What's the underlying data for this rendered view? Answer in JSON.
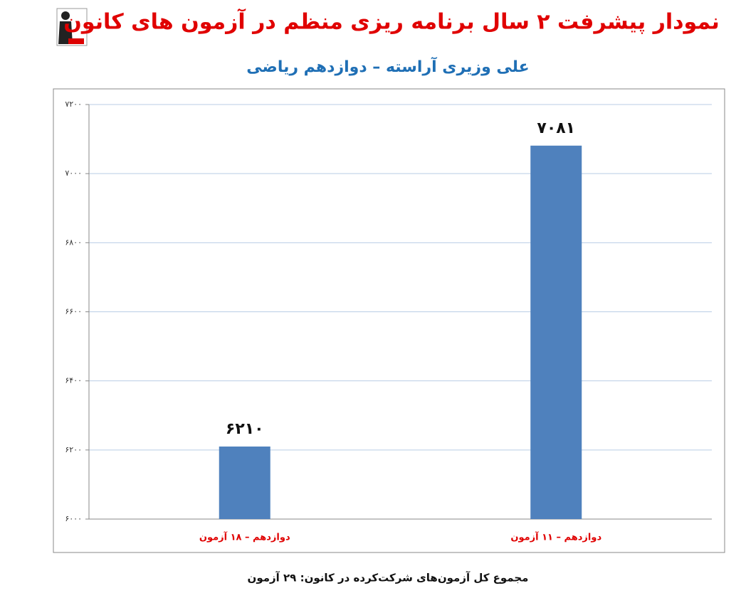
{
  "chart_data": {
    "type": "bar",
    "title": "نمودار پیشرفت ۲ سال برنامه ریزی منظم در آزمون های کانون",
    "subtitle": "علی وزیری آراسته – دوازدهم ریاضی",
    "categories": [
      "دوازدهم – ۱۸ آزمون",
      "دوازدهم – ۱۱ آزمون"
    ],
    "values": [
      6210,
      7081
    ],
    "value_labels": [
      "۶۲۱۰",
      "۷۰۸۱"
    ],
    "color": "#4f81bd",
    "ylim": [
      6000,
      7200
    ],
    "yticks": [
      {
        "value": 6000,
        "label": "۶۰۰۰"
      },
      {
        "value": 6200,
        "label": "۶۲۰۰"
      },
      {
        "value": 6400,
        "label": "۶۴۰۰"
      },
      {
        "value": 6600,
        "label": "۶۶۰۰"
      },
      {
        "value": 6800,
        "label": "۶۸۰۰"
      },
      {
        "value": 7000,
        "label": "۷۰۰۰"
      },
      {
        "value": 7200,
        "label": "۷۲۰۰"
      }
    ],
    "grid": true,
    "footer": "مجموع کل آزمون‌های شرکت‌کرده در کانون: ۲۹ آزمون"
  }
}
